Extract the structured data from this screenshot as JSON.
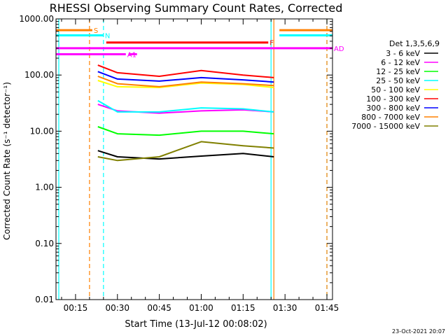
{
  "chart_data": {
    "type": "line",
    "title": "RHESSI Observing Summary Count Rates, Corrected",
    "xlabel": "Start Time (13-Jul-12 00:08:02)",
    "ylabel": "Corrected Count Rate (s⁻¹ detector⁻¹)",
    "y_scale": "log",
    "ylim": [
      0.01,
      1000
    ],
    "xlim": [
      "00:08",
      "01:47"
    ],
    "x_ticks": [
      "00:15",
      "00:30",
      "00:45",
      "01:00",
      "01:15",
      "01:30",
      "01:45"
    ],
    "y_ticks": [
      "0.01",
      "0.10",
      "1.00",
      "10.00",
      "100.00",
      "1000.00"
    ],
    "legend_title": "Det 1,3,5,6,9",
    "legend_position": "right",
    "timestamp": "23-Oct-2021 20:07",
    "series": [
      {
        "name": "3 - 6 keV",
        "color": "#000000",
        "x": [
          "00:23",
          "00:30",
          "00:45",
          "01:00",
          "01:15",
          "01:26"
        ],
        "values": [
          4.5,
          3.5,
          3.2,
          3.6,
          4.0,
          3.5
        ]
      },
      {
        "name": "6 - 12 keV",
        "color": "#ff00ff",
        "x": [
          "00:23",
          "00:30",
          "00:45",
          "01:00",
          "01:15",
          "01:26"
        ],
        "values": [
          30,
          23,
          21,
          23,
          24,
          22
        ]
      },
      {
        "name": "12 - 25 keV",
        "color": "#00ff00",
        "x": [
          "00:23",
          "00:30",
          "00:45",
          "01:00",
          "01:15",
          "01:26"
        ],
        "values": [
          12,
          9,
          8.5,
          10,
          10,
          9
        ]
      },
      {
        "name": "25 - 50 keV",
        "color": "#00ffff",
        "x": [
          "00:23",
          "00:30",
          "00:45",
          "01:00",
          "01:15",
          "01:26"
        ],
        "values": [
          35,
          22,
          22,
          26,
          25,
          22
        ]
      },
      {
        "name": "50 - 100 keV",
        "color": "#ffff00",
        "x": [
          "00:23",
          "00:30",
          "00:45",
          "01:00",
          "01:15",
          "01:26"
        ],
        "values": [
          80,
          62,
          60,
          72,
          68,
          60
        ]
      },
      {
        "name": "100 - 300 keV",
        "color": "#ff0000",
        "x": [
          "00:23",
          "00:30",
          "00:45",
          "01:00",
          "01:15",
          "01:26"
        ],
        "values": [
          150,
          110,
          95,
          120,
          100,
          90
        ]
      },
      {
        "name": "300 - 800 keV",
        "color": "#0000ff",
        "x": [
          "00:23",
          "00:30",
          "00:45",
          "01:00",
          "01:15",
          "01:26"
        ],
        "values": [
          115,
          85,
          78,
          90,
          82,
          75
        ]
      },
      {
        "name": "800 - 7000 keV",
        "color": "#ff8000",
        "x": [
          "00:23",
          "00:30",
          "00:45",
          "01:00",
          "01:15",
          "01:26"
        ],
        "values": [
          95,
          70,
          62,
          75,
          70,
          65
        ]
      },
      {
        "name": "7000 - 15000 keV",
        "color": "#808000",
        "x": [
          "00:23",
          "00:30",
          "00:45",
          "01:00",
          "01:15",
          "01:26"
        ],
        "values": [
          3.5,
          3.0,
          3.5,
          6.5,
          5.5,
          5.0
        ]
      }
    ],
    "attenuator_bars": [
      {
        "label": "S",
        "color": "#ff8000",
        "value": 630,
        "segments": [
          [
            "00:08",
            "00:21"
          ],
          [
            "01:28",
            "01:47"
          ]
        ]
      },
      {
        "label": "N",
        "color": "#00ffff",
        "value": 510,
        "segments": [
          [
            "00:08",
            "00:25"
          ],
          [
            "01:28",
            "01:47"
          ]
        ]
      },
      {
        "label": "F",
        "color": "#ff0000",
        "value": 380,
        "segments": [
          [
            "00:26",
            "01:24"
          ]
        ]
      },
      {
        "label": "AD",
        "color": "#ff00ff",
        "value": 300,
        "segments": [
          [
            "00:08",
            "01:47"
          ]
        ]
      },
      {
        "label": "A1",
        "color": "#ff00ff",
        "value": 235,
        "segments": [
          [
            "00:08",
            "00:33"
          ],
          [
            "00:34",
            "00:37"
          ]
        ]
      }
    ],
    "vertical_markers": [
      {
        "time": "00:09",
        "color": "#00ffff",
        "style": "solid"
      },
      {
        "time": "00:20",
        "color": "#ff8000",
        "style": "dashed"
      },
      {
        "time": "00:25",
        "color": "#00ffff",
        "style": "dashed"
      },
      {
        "time": "01:25",
        "color": "#00ffff",
        "style": "solid"
      },
      {
        "time": "01:26",
        "color": "#ff8000",
        "style": "solid"
      },
      {
        "time": "01:45",
        "color": "#00ffff",
        "style": "dashed"
      },
      {
        "time": "01:45",
        "color": "#ff8000",
        "style": "dashed"
      }
    ]
  }
}
